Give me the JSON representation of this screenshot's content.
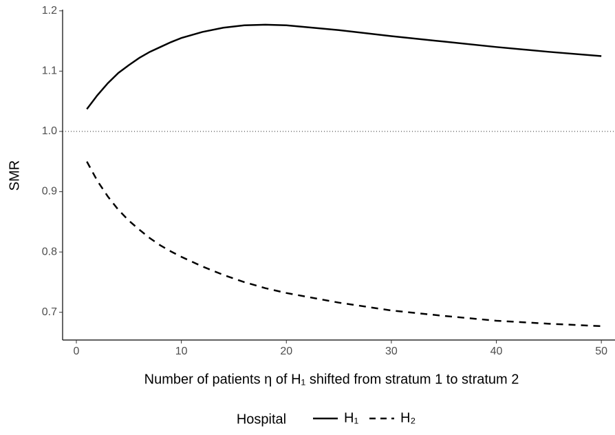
{
  "chart_data": {
    "type": "line",
    "xlabel": "Number of patients η of H₁ shifted from stratum 1 to stratum 2",
    "ylabel": "SMR",
    "legend_title": "Hospital",
    "x": [
      1,
      2,
      3,
      4,
      5,
      6,
      7,
      8,
      9,
      10,
      12,
      14,
      16,
      18,
      20,
      25,
      30,
      35,
      40,
      45,
      50
    ],
    "series": [
      {
        "name": "H₁",
        "color": "#000000",
        "dash": "solid",
        "values": [
          1.037,
          1.06,
          1.08,
          1.097,
          1.11,
          1.122,
          1.132,
          1.14,
          1.148,
          1.155,
          1.165,
          1.172,
          1.176,
          1.177,
          1.176,
          1.168,
          1.158,
          1.149,
          1.14,
          1.132,
          1.125
        ]
      },
      {
        "name": "H₂",
        "color": "#000000",
        "dash": "dashed",
        "values": [
          0.95,
          0.918,
          0.892,
          0.87,
          0.852,
          0.837,
          0.823,
          0.811,
          0.801,
          0.792,
          0.776,
          0.762,
          0.75,
          0.74,
          0.732,
          0.716,
          0.703,
          0.694,
          0.686,
          0.681,
          0.677
        ]
      }
    ],
    "hline": 1.0,
    "xlim": [
      -1.31,
      51.3
    ],
    "ylim": [
      0.654,
      1.202
    ],
    "xticks": [
      0,
      10,
      20,
      30,
      40,
      50
    ],
    "yticks": [
      {
        "value": 0.7,
        "label": "0.7"
      },
      {
        "value": 0.8,
        "label": "0.8"
      },
      {
        "value": 0.9,
        "label": "0.9"
      },
      {
        "value": 1.0,
        "label": "1.0"
      },
      {
        "value": 1.1,
        "label": "1.1"
      },
      {
        "value": 1.2,
        "label": "1.2"
      }
    ],
    "legend_position": "bottom"
  }
}
